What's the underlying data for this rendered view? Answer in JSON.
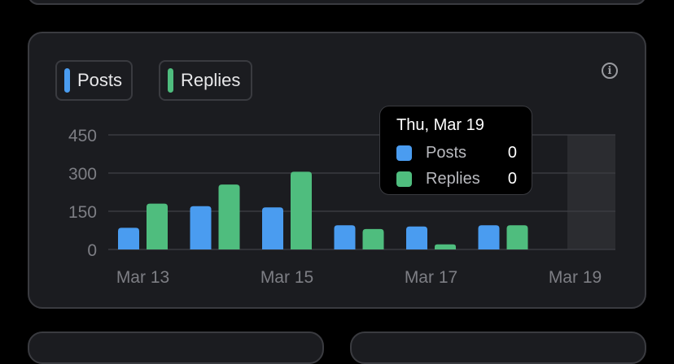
{
  "legend": [
    {
      "label": "Posts",
      "color": "#4a9cf0"
    },
    {
      "label": "Replies",
      "color": "#4fbd7e"
    }
  ],
  "icons": {
    "info": "info-circle-icon"
  },
  "info_glyph": "i",
  "tooltip": {
    "title": "Thu, Mar 19",
    "rows": [
      {
        "label": "Posts",
        "value": "0",
        "color": "#4a9cf0"
      },
      {
        "label": "Replies",
        "value": "0",
        "color": "#4fbd7e"
      }
    ]
  },
  "chart_data": {
    "type": "bar",
    "categories": [
      "Mar 13",
      "Mar 14",
      "Mar 15",
      "Mar 16",
      "Mar 17",
      "Mar 18",
      "Mar 19"
    ],
    "x_tick_labels": [
      "Mar 13",
      "Mar 15",
      "Mar 17",
      "Mar 19"
    ],
    "series": [
      {
        "name": "Posts",
        "color": "#4a9cf0",
        "values": [
          85,
          170,
          165,
          95,
          90,
          95,
          0
        ]
      },
      {
        "name": "Replies",
        "color": "#4fbd7e",
        "values": [
          180,
          255,
          305,
          80,
          20,
          95,
          0
        ]
      }
    ],
    "y_ticks": [
      0,
      150,
      300,
      450
    ],
    "ylim": [
      0,
      450
    ],
    "highlighted_category": "Mar 19",
    "grid": true
  }
}
